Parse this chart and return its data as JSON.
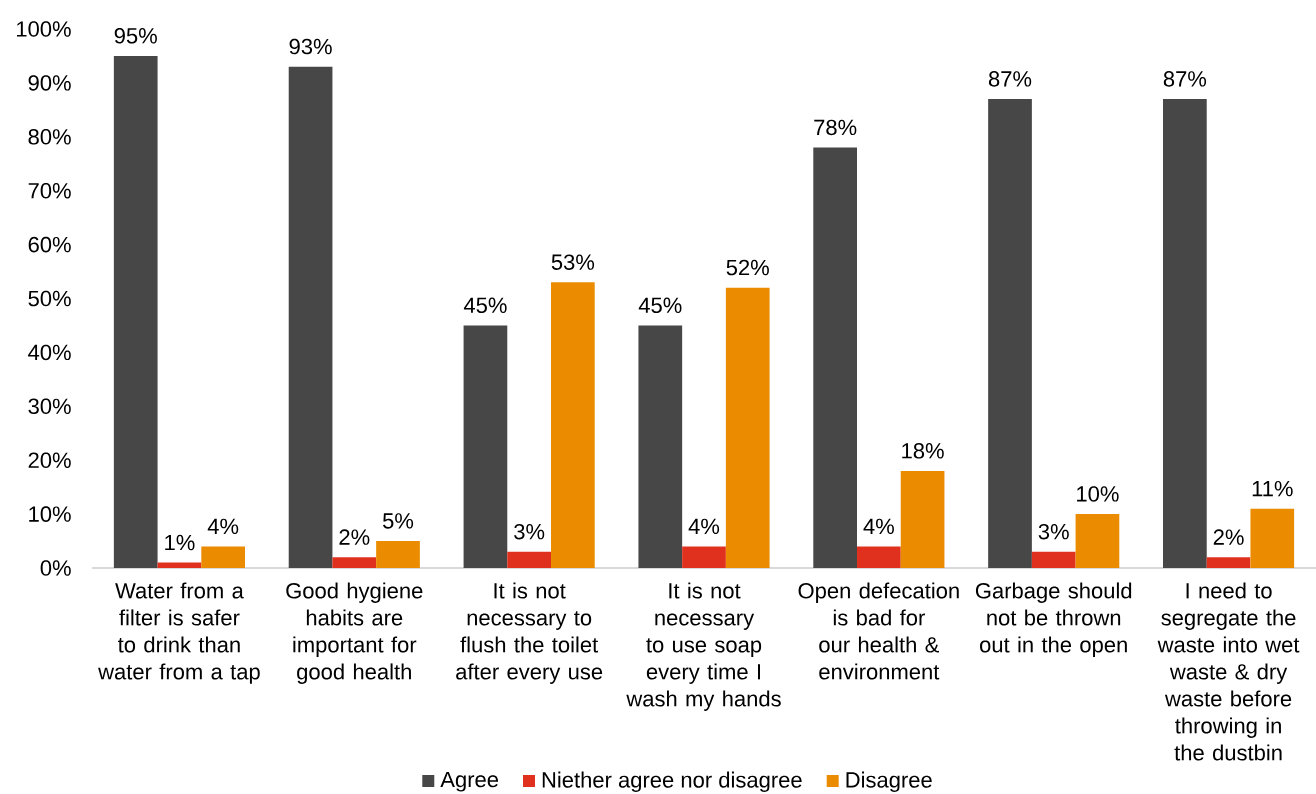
{
  "chart_data": {
    "type": "bar",
    "categories": [
      "Water from a filter is safer to drink than water from a tap",
      "Good hygiene habits are important for good health",
      "It is not necessary to flush the toilet after every use",
      "It is not necessary to use soap every time I wash my hands",
      "Open defecation is bad for our health & environment",
      "Garbage should not be thrown out in the open",
      "I need to segregate the waste into wet waste & dry waste before throwing in the dustbin"
    ],
    "series": [
      {
        "name": "Agree",
        "color": "#474747",
        "values": [
          95,
          93,
          45,
          45,
          78,
          87,
          87
        ],
        "value_labels": [
          "95%",
          "93%",
          "45%",
          "45%",
          "78%",
          "87%",
          "87%"
        ]
      },
      {
        "name": "Niether agree nor disagree",
        "color": "#e0301e",
        "values": [
          1,
          2,
          3,
          4,
          4,
          3,
          2
        ],
        "value_labels": [
          "1%",
          "2%",
          "3%",
          "4%",
          "4%",
          "3%",
          "2%"
        ]
      },
      {
        "name": "Disagree",
        "color": "#eb8c00",
        "values": [
          4,
          5,
          53,
          52,
          18,
          10,
          11
        ],
        "value_labels": [
          "4%",
          "5%",
          "53%",
          "52%",
          "18%",
          "10%",
          "11%"
        ]
      }
    ],
    "ylim": [
      0,
      100
    ],
    "yticks": [
      {
        "value": 0,
        "label": "0%"
      },
      {
        "value": 10,
        "label": "10%"
      },
      {
        "value": 20,
        "label": "20%"
      },
      {
        "value": 30,
        "label": "30%"
      },
      {
        "value": 40,
        "label": "40%"
      },
      {
        "value": 50,
        "label": "50%"
      },
      {
        "value": 60,
        "label": "60%"
      },
      {
        "value": 70,
        "label": "70%"
      },
      {
        "value": 80,
        "label": "80%"
      },
      {
        "value": 90,
        "label": "90%"
      },
      {
        "value": 100,
        "label": "100%"
      }
    ],
    "legend": "bottom"
  }
}
